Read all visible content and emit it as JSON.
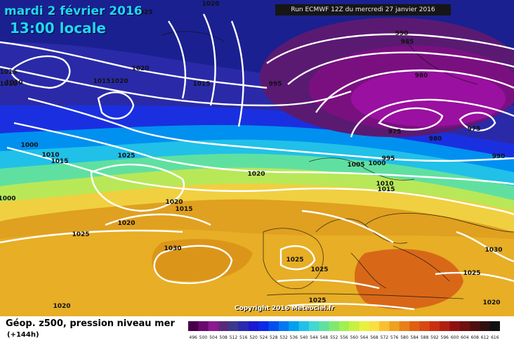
{
  "header": {
    "date": "mardi 2 février 2016",
    "time": "13:00 locale",
    "run": "Run ECMWF 12Z du mercredi 27 janvier 2016"
  },
  "copyright": "Copyright 2016 Meteociel.fr",
  "footer": {
    "title": "Géop. z500, pression niveau mer",
    "subtitle": "(+144h)"
  },
  "legend": {
    "ticks": [
      "496",
      "500",
      "504",
      "508",
      "512",
      "516",
      "520",
      "524",
      "528",
      "532",
      "536",
      "540",
      "544",
      "548",
      "552",
      "556",
      "560",
      "564",
      "568",
      "572",
      "576",
      "580",
      "584",
      "588",
      "592",
      "596",
      "600",
      "604",
      "608",
      "612",
      "616"
    ],
    "colors": [
      "#46004a",
      "#6a0a70",
      "#8a1a8e",
      "#5a2a7a",
      "#3a3a8a",
      "#2a2ab0",
      "#1a1ad0",
      "#0a2ae8",
      "#0050f0",
      "#0078f0",
      "#00a0f0",
      "#20c0e8",
      "#40d8d0",
      "#60e0a0",
      "#80e870",
      "#a0f050",
      "#c8f040",
      "#e8f040",
      "#f8e040",
      "#f8c030",
      "#f0a020",
      "#e88018",
      "#e06010",
      "#d84810",
      "#c83010",
      "#b02010",
      "#901010",
      "#701010",
      "#501010",
      "#301010",
      "#101010"
    ]
  },
  "isobars": [
    {
      "label": "1025"
    },
    {
      "label": "1020"
    },
    {
      "label": "1015"
    },
    {
      "label": "1010"
    },
    {
      "label": "1020"
    },
    {
      "label": "1020"
    },
    {
      "label": "1015"
    },
    {
      "label": "1015"
    },
    {
      "label": "1010"
    },
    {
      "label": "995"
    },
    {
      "label": "990"
    },
    {
      "label": "985"
    },
    {
      "label": "980"
    },
    {
      "label": "975"
    },
    {
      "label": "975"
    },
    {
      "label": "980"
    },
    {
      "label": "990"
    },
    {
      "label": "995"
    },
    {
      "label": "1000"
    },
    {
      "label": "1005"
    },
    {
      "label": "1010"
    },
    {
      "label": "1015"
    },
    {
      "label": "1020"
    },
    {
      "label": "1000"
    },
    {
      "label": "1010"
    },
    {
      "label": "1015"
    },
    {
      "label": "1025"
    },
    {
      "label": "1000"
    },
    {
      "label": "1020"
    },
    {
      "label": "1015"
    },
    {
      "label": "1020"
    },
    {
      "label": "1025"
    },
    {
      "label": "1030"
    },
    {
      "label": "1025"
    },
    {
      "label": "1025"
    },
    {
      "label": "1025"
    },
    {
      "label": "1020"
    },
    {
      "label": "1030"
    },
    {
      "label": "1025"
    },
    {
      "label": "1020"
    }
  ]
}
